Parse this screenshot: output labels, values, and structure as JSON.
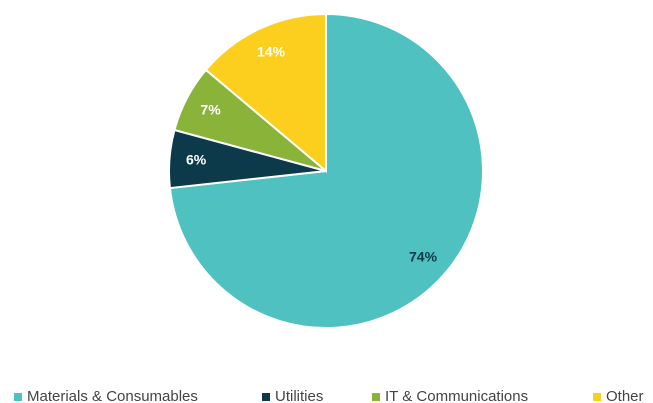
{
  "chart_data": {
    "type": "pie",
    "categories": [
      "Materials & Consumables",
      "Utilities",
      "IT & Communications",
      "Other"
    ],
    "values": [
      74,
      6,
      7,
      14
    ],
    "value_labels": [
      "74%",
      "6%",
      "7%",
      "14%"
    ],
    "colors": [
      "#4fc1c1",
      "#0d3a4a",
      "#8ab33a",
      "#fccf1f"
    ],
    "value_label_colors": [
      "#0d3a4a",
      "#ffffff",
      "#ffffff",
      "#ffffff"
    ],
    "legend": "bottom"
  }
}
